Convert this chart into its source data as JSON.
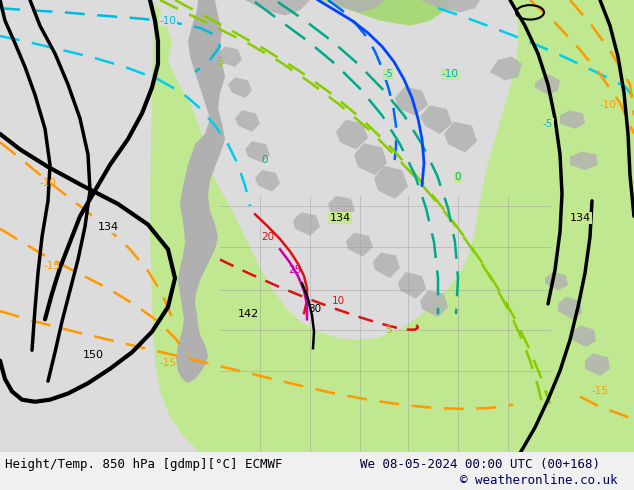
{
  "title_left": "Height/Temp. 850 hPa [gdmp][°C] ECMWF",
  "title_right": "We 08-05-2024 00:00 UTC (00+168)",
  "copyright": "© weatheronline.co.uk",
  "bg_color": "#e0e0e0",
  "land_gray": "#b8b8b8",
  "green_light": "#c8f0a0",
  "green_mid": "#b0e880",
  "ocean_color": "#dcdcdc",
  "font_size_bottom": 9,
  "fig_width": 6.34,
  "fig_height": 4.9,
  "dpi": 100,
  "text_color_left": "#000000",
  "text_color_right": "#00003a",
  "copyright_color": "#000060"
}
